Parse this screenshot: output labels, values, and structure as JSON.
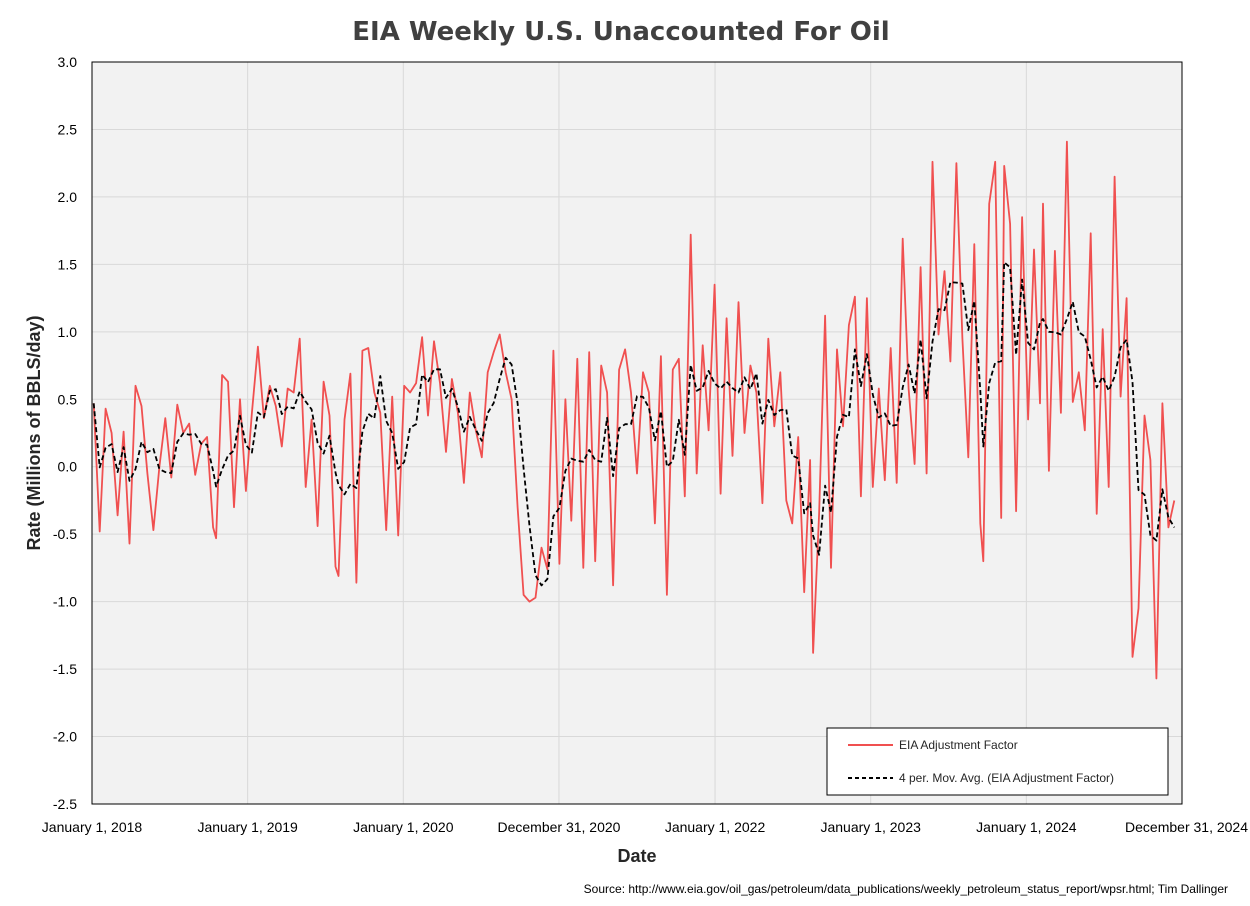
{
  "chart_data": {
    "type": "line",
    "title": "EIA Weekly U.S. Unaccounted For Oil",
    "xlabel": "Date",
    "ylabel": "Rate (Millions of BBLS/day)",
    "source": "Source: http://www.eia.gov/oil_gas/petroleum/data_publications/weekly_petroleum_status_report/wpsr.html; Tim Dallinger",
    "xlim": [
      "2018-01-01",
      "2024-12-31"
    ],
    "ylim": [
      -2.5,
      3.0
    ],
    "grid": true,
    "legend_position": "bottom-right",
    "x_ticks": [
      {
        "date": "2018-01-01",
        "label": "January 1, 2018"
      },
      {
        "date": "2019-01-01",
        "label": "January 1, 2019"
      },
      {
        "date": "2020-01-01",
        "label": "January 1, 2020"
      },
      {
        "date": "2020-12-31",
        "label": "December 31, 2020"
      },
      {
        "date": "2022-01-01",
        "label": "January 1, 2022"
      },
      {
        "date": "2023-01-01",
        "label": "January 1, 2023"
      },
      {
        "date": "2024-01-01",
        "label": "January 1, 2024"
      },
      {
        "date": "2024-12-31",
        "label": "December 31, 2024"
      }
    ],
    "y_ticks": [
      {
        "value": 3.0,
        "label": "3.0"
      },
      {
        "value": 2.5,
        "label": "2.5"
      },
      {
        "value": 2.0,
        "label": "2.0"
      },
      {
        "value": 1.5,
        "label": "1.5"
      },
      {
        "value": 1.0,
        "label": "1.0"
      },
      {
        "value": 0.5,
        "label": "0.5"
      },
      {
        "value": 0.0,
        "label": "0.0"
      },
      {
        "value": -0.5,
        "label": "-0.5"
      },
      {
        "value": -1.0,
        "label": "-1.0"
      },
      {
        "value": -1.5,
        "label": "-1.5"
      },
      {
        "value": -2.0,
        "label": "-2.0"
      },
      {
        "value": -2.5,
        "label": "-2.5"
      }
    ],
    "series": [
      {
        "name": "EIA Adjustment Factor",
        "color": "#f05050",
        "style": "solid",
        "points": [
          [
            "2018-01-05",
            0.47
          ],
          [
            "2018-01-19",
            -0.48
          ],
          [
            "2018-02-02",
            0.43
          ],
          [
            "2018-02-16",
            0.25
          ],
          [
            "2018-03-02",
            -0.36
          ],
          [
            "2018-03-16",
            0.26
          ],
          [
            "2018-03-30",
            -0.57
          ],
          [
            "2018-04-13",
            0.6
          ],
          [
            "2018-04-27",
            0.45
          ],
          [
            "2018-05-11",
            -0.05
          ],
          [
            "2018-05-25",
            -0.47
          ],
          [
            "2018-06-08",
            0.0
          ],
          [
            "2018-06-22",
            0.36
          ],
          [
            "2018-07-06",
            -0.08
          ],
          [
            "2018-07-20",
            0.46
          ],
          [
            "2018-08-03",
            0.25
          ],
          [
            "2018-08-17",
            0.32
          ],
          [
            "2018-08-31",
            -0.06
          ],
          [
            "2018-09-14",
            0.17
          ],
          [
            "2018-09-28",
            0.22
          ],
          [
            "2018-10-12",
            -0.45
          ],
          [
            "2018-10-19",
            -0.53
          ],
          [
            "2018-11-02",
            0.68
          ],
          [
            "2018-11-16",
            0.63
          ],
          [
            "2018-11-30",
            -0.3
          ],
          [
            "2018-12-14",
            0.5
          ],
          [
            "2018-12-28",
            -0.18
          ],
          [
            "2019-01-11",
            0.4
          ],
          [
            "2019-01-25",
            0.89
          ],
          [
            "2019-02-08",
            0.36
          ],
          [
            "2019-02-22",
            0.6
          ],
          [
            "2019-03-08",
            0.45
          ],
          [
            "2019-03-22",
            0.15
          ],
          [
            "2019-04-05",
            0.58
          ],
          [
            "2019-04-19",
            0.55
          ],
          [
            "2019-05-03",
            0.95
          ],
          [
            "2019-05-17",
            -0.15
          ],
          [
            "2019-05-31",
            0.35
          ],
          [
            "2019-06-14",
            -0.44
          ],
          [
            "2019-06-28",
            0.63
          ],
          [
            "2019-07-12",
            0.38
          ],
          [
            "2019-07-26",
            -0.74
          ],
          [
            "2019-08-02",
            -0.81
          ],
          [
            "2019-08-16",
            0.35
          ],
          [
            "2019-08-30",
            0.69
          ],
          [
            "2019-09-13",
            -0.86
          ],
          [
            "2019-09-27",
            0.86
          ],
          [
            "2019-10-11",
            0.88
          ],
          [
            "2019-10-25",
            0.55
          ],
          [
            "2019-11-08",
            0.4
          ],
          [
            "2019-11-22",
            -0.47
          ],
          [
            "2019-12-06",
            0.52
          ],
          [
            "2019-12-20",
            -0.51
          ],
          [
            "2020-01-03",
            0.6
          ],
          [
            "2020-01-17",
            0.55
          ],
          [
            "2020-01-31",
            0.62
          ],
          [
            "2020-02-14",
            0.96
          ],
          [
            "2020-02-28",
            0.38
          ],
          [
            "2020-03-13",
            0.93
          ],
          [
            "2020-03-27",
            0.62
          ],
          [
            "2020-04-10",
            0.11
          ],
          [
            "2020-04-24",
            0.65
          ],
          [
            "2020-05-08",
            0.4
          ],
          [
            "2020-05-22",
            -0.12
          ],
          [
            "2020-06-05",
            0.55
          ],
          [
            "2020-06-19",
            0.27
          ],
          [
            "2020-07-03",
            0.07
          ],
          [
            "2020-07-17",
            0.7
          ],
          [
            "2020-07-31",
            0.85
          ],
          [
            "2020-08-14",
            0.98
          ],
          [
            "2020-08-28",
            0.7
          ],
          [
            "2020-09-11",
            0.5
          ],
          [
            "2020-09-25",
            -0.3
          ],
          [
            "2020-10-09",
            -0.95
          ],
          [
            "2020-10-23",
            -1.0
          ],
          [
            "2020-11-06",
            -0.97
          ],
          [
            "2020-11-20",
            -0.6
          ],
          [
            "2020-12-04",
            -0.76
          ],
          [
            "2020-12-18",
            0.86
          ],
          [
            "2021-01-01",
            -0.72
          ],
          [
            "2021-01-15",
            0.5
          ],
          [
            "2021-01-29",
            -0.4
          ],
          [
            "2021-02-12",
            0.8
          ],
          [
            "2021-02-26",
            -0.75
          ],
          [
            "2021-03-12",
            0.85
          ],
          [
            "2021-03-26",
            -0.7
          ],
          [
            "2021-04-09",
            0.75
          ],
          [
            "2021-04-23",
            0.55
          ],
          [
            "2021-05-07",
            -0.88
          ],
          [
            "2021-05-21",
            0.72
          ],
          [
            "2021-06-04",
            0.87
          ],
          [
            "2021-06-18",
            0.55
          ],
          [
            "2021-07-02",
            -0.05
          ],
          [
            "2021-07-16",
            0.7
          ],
          [
            "2021-07-30",
            0.55
          ],
          [
            "2021-08-13",
            -0.42
          ],
          [
            "2021-08-27",
            0.82
          ],
          [
            "2021-09-10",
            -0.95
          ],
          [
            "2021-09-24",
            0.72
          ],
          [
            "2021-10-08",
            0.8
          ],
          [
            "2021-10-22",
            -0.22
          ],
          [
            "2021-11-05",
            1.72
          ],
          [
            "2021-11-19",
            -0.05
          ],
          [
            "2021-12-03",
            0.9
          ],
          [
            "2021-12-17",
            0.27
          ],
          [
            "2021-12-31",
            1.35
          ],
          [
            "2022-01-14",
            -0.2
          ],
          [
            "2022-01-28",
            1.1
          ],
          [
            "2022-02-11",
            0.08
          ],
          [
            "2022-02-25",
            1.22
          ],
          [
            "2022-03-11",
            0.25
          ],
          [
            "2022-03-25",
            0.75
          ],
          [
            "2022-04-08",
            0.55
          ],
          [
            "2022-04-22",
            -0.27
          ],
          [
            "2022-05-06",
            0.95
          ],
          [
            "2022-05-20",
            0.3
          ],
          [
            "2022-06-03",
            0.7
          ],
          [
            "2022-06-17",
            -0.25
          ],
          [
            "2022-07-01",
            -0.42
          ],
          [
            "2022-07-15",
            0.22
          ],
          [
            "2022-07-29",
            -0.93
          ],
          [
            "2022-08-12",
            0.05
          ],
          [
            "2022-08-19",
            -1.38
          ],
          [
            "2022-09-02",
            -0.35
          ],
          [
            "2022-09-16",
            1.12
          ],
          [
            "2022-09-30",
            -0.75
          ],
          [
            "2022-10-14",
            0.87
          ],
          [
            "2022-10-28",
            0.3
          ],
          [
            "2022-11-11",
            1.05
          ],
          [
            "2022-11-25",
            1.26
          ],
          [
            "2022-12-09",
            -0.22
          ],
          [
            "2022-12-23",
            1.25
          ],
          [
            "2023-01-06",
            -0.15
          ],
          [
            "2023-01-20",
            0.58
          ],
          [
            "2023-02-03",
            -0.1
          ],
          [
            "2023-02-17",
            0.88
          ],
          [
            "2023-03-03",
            -0.12
          ],
          [
            "2023-03-17",
            1.69
          ],
          [
            "2023-03-31",
            0.58
          ],
          [
            "2023-04-14",
            0.02
          ],
          [
            "2023-04-28",
            1.48
          ],
          [
            "2023-05-12",
            -0.05
          ],
          [
            "2023-05-26",
            2.26
          ],
          [
            "2023-06-09",
            0.98
          ],
          [
            "2023-06-23",
            1.45
          ],
          [
            "2023-07-07",
            0.78
          ],
          [
            "2023-07-21",
            2.25
          ],
          [
            "2023-08-04",
            0.95
          ],
          [
            "2023-08-18",
            0.07
          ],
          [
            "2023-09-01",
            1.65
          ],
          [
            "2023-09-15",
            -0.42
          ],
          [
            "2023-09-22",
            -0.7
          ],
          [
            "2023-10-06",
            1.95
          ],
          [
            "2023-10-20",
            2.26
          ],
          [
            "2023-11-03",
            -0.38
          ],
          [
            "2023-11-10",
            2.23
          ],
          [
            "2023-11-24",
            1.8
          ],
          [
            "2023-12-08",
            -0.33
          ],
          [
            "2023-12-22",
            1.85
          ],
          [
            "2024-01-05",
            0.35
          ],
          [
            "2024-01-19",
            1.61
          ],
          [
            "2024-02-02",
            0.47
          ],
          [
            "2024-02-09",
            1.95
          ],
          [
            "2024-02-23",
            -0.03
          ],
          [
            "2024-03-08",
            1.6
          ],
          [
            "2024-03-22",
            0.4
          ],
          [
            "2024-04-05",
            2.41
          ],
          [
            "2024-04-19",
            0.48
          ],
          [
            "2024-05-03",
            0.7
          ],
          [
            "2024-05-17",
            0.27
          ],
          [
            "2024-05-31",
            1.73
          ],
          [
            "2024-06-14",
            -0.35
          ],
          [
            "2024-06-28",
            1.02
          ],
          [
            "2024-07-12",
            -0.15
          ],
          [
            "2024-07-26",
            2.15
          ],
          [
            "2024-08-09",
            0.52
          ],
          [
            "2024-08-23",
            1.25
          ],
          [
            "2024-09-06",
            -1.41
          ],
          [
            "2024-09-20",
            -1.05
          ],
          [
            "2024-10-04",
            0.38
          ],
          [
            "2024-10-18",
            0.05
          ],
          [
            "2024-11-01",
            -1.57
          ],
          [
            "2024-11-15",
            0.47
          ],
          [
            "2024-11-29",
            -0.45
          ],
          [
            "2024-12-13",
            -0.25
          ]
        ]
      },
      {
        "name": "4 per. Mov. Avg. (EIA Adjustment Factor)",
        "color": "#000000",
        "style": "dashed",
        "points": []
      }
    ]
  }
}
